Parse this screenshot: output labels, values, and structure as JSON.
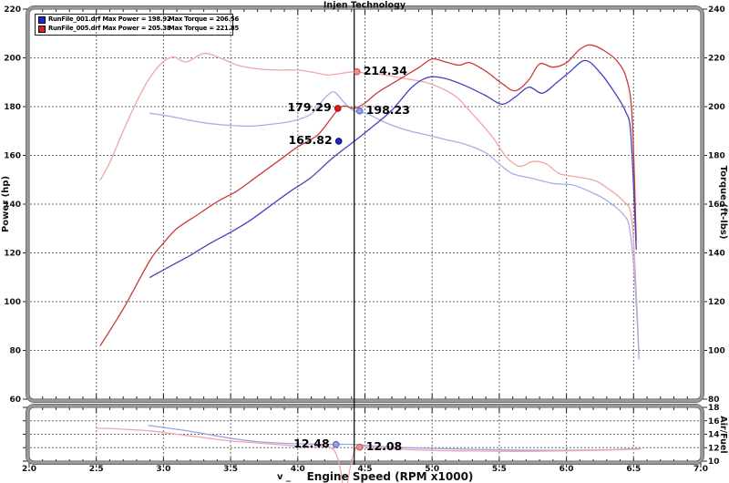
{
  "title": "Injen Technology",
  "legend": {
    "rows": [
      {
        "color": "#2222d6",
        "name_power": "RunFile_001.drf Max Power = 198.92",
        "max_torque": "Max Torque = 206.56"
      },
      {
        "color": "#e31b1b",
        "name_power": "RunFile_005.drf Max Power = 205.38",
        "max_torque": "Max Torque = 221.85"
      }
    ]
  },
  "chart_data": {
    "type": "line",
    "title": "Injen Technology",
    "grid": "dashed",
    "legend_position": "top-left",
    "x": {
      "label": "Engine Speed (RPM x1000)",
      "label_prefix": "v _",
      "min": 2.0,
      "max": 7.0,
      "major": 0.5,
      "minor": 0.1,
      "tick_labels": [
        "2.0",
        "2.5",
        "3.0",
        "3.5",
        "4.0",
        "4.5",
        "5.0",
        "5.5",
        "6.0",
        "6.5",
        "7.0"
      ]
    },
    "panels": [
      {
        "id": "main",
        "y_left": {
          "label": "Power (hp)",
          "min": 60,
          "max": 220,
          "major": 20,
          "minor": 5,
          "tick_labels": [
            "220",
            "200",
            "180",
            "160",
            "140",
            "120",
            "100",
            "80",
            "60"
          ]
        },
        "y_right": {
          "label": "Torque (ft-lbs)",
          "min": 80,
          "max": 240,
          "major": 20,
          "minor": 5,
          "tick_labels": [
            "240",
            "220",
            "200",
            "180",
            "160",
            "140",
            "120",
            "100",
            "80"
          ]
        },
        "series": [
          {
            "name": "RunFile_005 Torque",
            "axis": "right",
            "color": "#f2a6a6",
            "points": [
              [
                2.53,
                170
              ],
              [
                2.6,
                177
              ],
              [
                2.7,
                190
              ],
              [
                2.8,
                202
              ],
              [
                2.9,
                212
              ],
              [
                3.0,
                218.5
              ],
              [
                3.08,
                220.3
              ],
              [
                3.17,
                218.3
              ],
              [
                3.3,
                221.8
              ],
              [
                3.42,
                220
              ],
              [
                3.55,
                217
              ],
              [
                3.7,
                215.5
              ],
              [
                3.85,
                215
              ],
              [
                4.0,
                215
              ],
              [
                4.12,
                214
              ],
              [
                4.22,
                213
              ],
              [
                4.32,
                213.6
              ],
              [
                4.42,
                214.3
              ],
              [
                4.52,
                213.6
              ],
              [
                4.65,
                213
              ],
              [
                4.8,
                211.5
              ],
              [
                4.95,
                210
              ],
              [
                5.05,
                208
              ],
              [
                5.18,
                204
              ],
              [
                5.3,
                197
              ],
              [
                5.45,
                187.5
              ],
              [
                5.55,
                179.5
              ],
              [
                5.65,
                175.5
              ],
              [
                5.75,
                177.5
              ],
              [
                5.85,
                176.5
              ],
              [
                5.95,
                172.5
              ],
              [
                6.1,
                171
              ],
              [
                6.22,
                169.5
              ],
              [
                6.32,
                166
              ],
              [
                6.42,
                161.5
              ],
              [
                6.48,
                156
              ],
              [
                6.51,
                135
              ],
              [
                6.54,
                99
              ]
            ]
          },
          {
            "name": "RunFile_001 Torque",
            "axis": "right",
            "color": "#a9aee8",
            "points": [
              [
                2.9,
                197.3
              ],
              [
                3.05,
                196
              ],
              [
                3.2,
                194.3
              ],
              [
                3.35,
                193
              ],
              [
                3.5,
                192.3
              ],
              [
                3.65,
                192
              ],
              [
                3.8,
                192.8
              ],
              [
                3.95,
                194
              ],
              [
                4.1,
                197
              ],
              [
                4.2,
                203.5
              ],
              [
                4.27,
                206
              ],
              [
                4.34,
                202
              ],
              [
                4.42,
                198.2
              ],
              [
                4.52,
                197
              ],
              [
                4.65,
                193.5
              ],
              [
                4.8,
                190.5
              ],
              [
                4.95,
                188.5
              ],
              [
                5.1,
                186.5
              ],
              [
                5.25,
                184.5
              ],
              [
                5.4,
                181
              ],
              [
                5.5,
                176.5
              ],
              [
                5.6,
                172.5
              ],
              [
                5.75,
                170.5
              ],
              [
                5.9,
                168.5
              ],
              [
                6.05,
                167.8
              ],
              [
                6.2,
                164.5
              ],
              [
                6.3,
                161.5
              ],
              [
                6.42,
                156
              ],
              [
                6.47,
                150
              ],
              [
                6.51,
                128
              ],
              [
                6.54,
                96.5
              ]
            ]
          },
          {
            "name": "RunFile_005 Power",
            "axis": "left",
            "color": "#c93a3a",
            "points": [
              [
                2.53,
                82
              ],
              [
                2.7,
                97
              ],
              [
                2.9,
                117
              ],
              [
                3.0,
                124
              ],
              [
                3.1,
                130
              ],
              [
                3.25,
                135.5
              ],
              [
                3.4,
                141
              ],
              [
                3.55,
                145.5
              ],
              [
                3.7,
                151.5
              ],
              [
                3.85,
                157.5
              ],
              [
                4.0,
                163.5
              ],
              [
                4.15,
                168.5
              ],
              [
                4.28,
                177.5
              ],
              [
                4.34,
                180.3
              ],
              [
                4.42,
                179.3
              ],
              [
                4.5,
                181.5
              ],
              [
                4.6,
                186
              ],
              [
                4.75,
                191
              ],
              [
                4.9,
                196
              ],
              [
                5.0,
                199.5
              ],
              [
                5.1,
                198.3
              ],
              [
                5.2,
                197
              ],
              [
                5.28,
                198
              ],
              [
                5.4,
                194.5
              ],
              [
                5.52,
                189.5
              ],
              [
                5.62,
                186.5
              ],
              [
                5.72,
                191
              ],
              [
                5.8,
                197.5
              ],
              [
                5.9,
                196.2
              ],
              [
                6.0,
                198
              ],
              [
                6.1,
                203.5
              ],
              [
                6.18,
                205.3
              ],
              [
                6.28,
                203
              ],
              [
                6.38,
                198.5
              ],
              [
                6.45,
                191
              ],
              [
                6.49,
                175
              ],
              [
                6.52,
                125
              ]
            ]
          },
          {
            "name": "RunFile_001 Power",
            "axis": "left",
            "color": "#4343c0",
            "points": [
              [
                2.9,
                110
              ],
              [
                3.05,
                114.5
              ],
              [
                3.2,
                119
              ],
              [
                3.35,
                124
              ],
              [
                3.5,
                128.5
              ],
              [
                3.65,
                133.5
              ],
              [
                3.8,
                139.5
              ],
              [
                3.95,
                145.5
              ],
              [
                4.1,
                151
              ],
              [
                4.25,
                158.5
              ],
              [
                4.42,
                165.8
              ],
              [
                4.55,
                171.5
              ],
              [
                4.7,
                178.5
              ],
              [
                4.85,
                188
              ],
              [
                4.97,
                192
              ],
              [
                5.1,
                191.5
              ],
              [
                5.25,
                188.5
              ],
              [
                5.4,
                184.5
              ],
              [
                5.52,
                181
              ],
              [
                5.62,
                184
              ],
              [
                5.72,
                188
              ],
              [
                5.82,
                185.5
              ],
              [
                5.92,
                189.5
              ],
              [
                6.02,
                194
              ],
              [
                6.14,
                198.9
              ],
              [
                6.25,
                194
              ],
              [
                6.35,
                186.5
              ],
              [
                6.44,
                178
              ],
              [
                6.48,
                168
              ],
              [
                6.52,
                121.5
              ]
            ]
          }
        ]
      },
      {
        "id": "airfuel",
        "y_right": {
          "label": "Air/Fuel",
          "min": 10,
          "max": 18,
          "major": 2,
          "minor": 1,
          "tick_labels": [
            "18",
            "16",
            "14",
            "12",
            "10"
          ]
        },
        "series": [
          {
            "name": "RunFile_001 Air/Fuel",
            "axis": "right",
            "color": "#9aa4e4",
            "points": [
              [
                2.89,
                15.3
              ],
              [
                3.0,
                15.0
              ],
              [
                3.15,
                14.6
              ],
              [
                3.3,
                14.1
              ],
              [
                3.5,
                13.4
              ],
              [
                3.7,
                12.9
              ],
              [
                3.9,
                12.65
              ],
              [
                4.1,
                12.55
              ],
              [
                4.25,
                12.5
              ],
              [
                4.42,
                12.48
              ],
              [
                4.6,
                12.2
              ],
              [
                4.8,
                12.0
              ],
              [
                5.0,
                11.9
              ],
              [
                5.3,
                11.75
              ],
              [
                5.6,
                11.65
              ],
              [
                5.9,
                11.6
              ],
              [
                6.2,
                11.65
              ],
              [
                6.4,
                11.75
              ],
              [
                6.55,
                11.9
              ]
            ]
          },
          {
            "name": "RunFile_005 Air/Fuel",
            "axis": "right",
            "color": "#f2a4ac",
            "points": [
              [
                2.5,
                14.9
              ],
              [
                2.7,
                14.75
              ],
              [
                2.9,
                14.5
              ],
              [
                3.1,
                14.0
              ],
              [
                3.3,
                13.5
              ],
              [
                3.5,
                13.0
              ],
              [
                3.7,
                12.7
              ],
              [
                3.9,
                12.4
              ],
              [
                4.1,
                12.1
              ],
              [
                4.25,
                11.95
              ],
              [
                4.31,
                9.5
              ],
              [
                4.35,
                5.0
              ],
              [
                4.39,
                9.0
              ],
              [
                4.44,
                12.08
              ],
              [
                4.55,
                11.95
              ],
              [
                4.7,
                11.8
              ],
              [
                5.0,
                11.6
              ],
              [
                5.3,
                11.5
              ],
              [
                5.6,
                11.45
              ],
              [
                5.9,
                11.5
              ],
              [
                6.2,
                11.6
              ],
              [
                6.4,
                11.7
              ],
              [
                6.55,
                11.8
              ]
            ]
          }
        ]
      }
    ],
    "cursor": {
      "rpm": 4.42,
      "markers": [
        {
          "label": "214.34",
          "value": 214.34,
          "panel": 0,
          "axis": "right",
          "dx": 3,
          "side": "right",
          "fill": "#ef8f8f",
          "edge": "#c05050"
        },
        {
          "label": "198.23",
          "value": 198.23,
          "panel": 0,
          "axis": "right",
          "dx": 6,
          "side": "right",
          "fill": "#98a0e0",
          "edge": "#5560b8"
        },
        {
          "label": "179.29",
          "value": 179.29,
          "panel": 0,
          "axis": "left",
          "dx": -18,
          "side": "left",
          "fill": "#e01818",
          "edge": "#8c0f0f"
        },
        {
          "label": "165.82",
          "value": 165.82,
          "panel": 0,
          "axis": "left",
          "dx": -17,
          "side": "left",
          "fill": "#2020cc",
          "edge": "#101070"
        },
        {
          "label": "12.48",
          "value": 12.48,
          "panel": 1,
          "axis": "right",
          "dx": -20,
          "side": "left",
          "fill": "#98a0e0",
          "edge": "#5560b8"
        },
        {
          "label": "12.08",
          "value": 12.08,
          "panel": 1,
          "axis": "right",
          "dx": 6,
          "side": "right",
          "fill": "#ef8f8f",
          "edge": "#c05050"
        }
      ]
    }
  }
}
